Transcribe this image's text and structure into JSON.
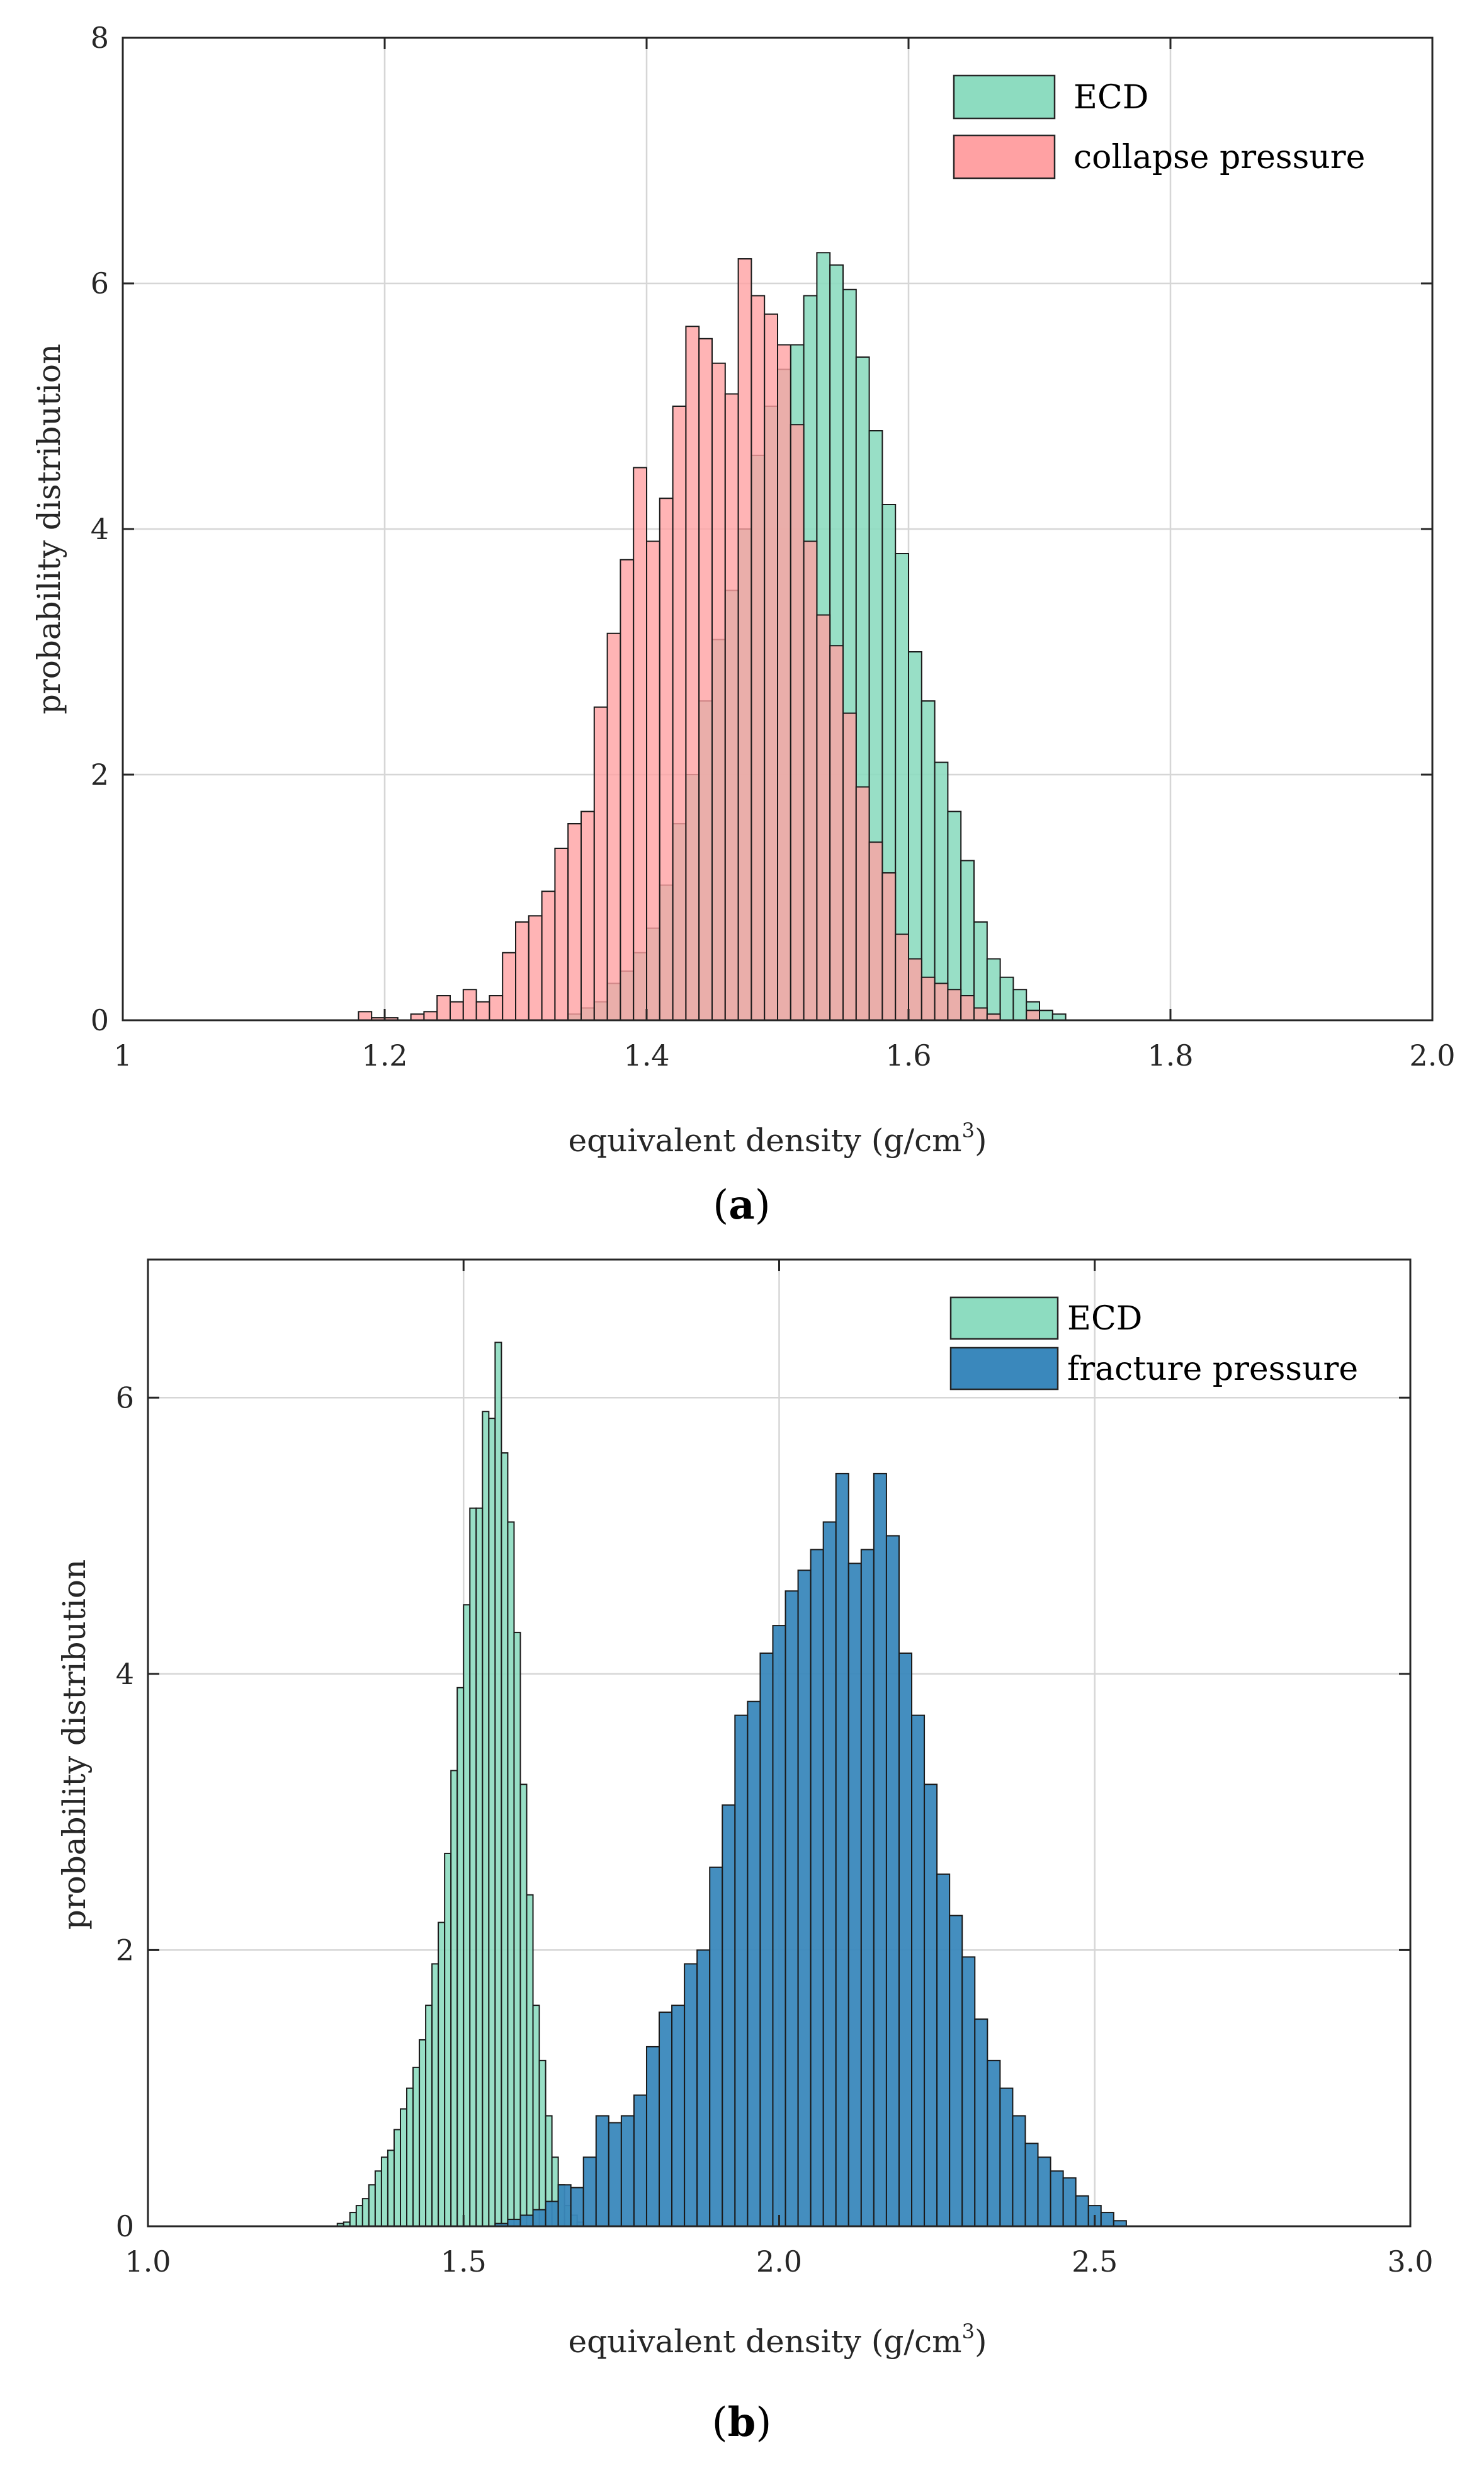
{
  "chart_data": [
    {
      "panel_label": "a",
      "type": "bar",
      "xlabel": "equivalent density (g/cm",
      "xlabel_sup": "3",
      "xlabel_close": ")",
      "ylabel": "probability distribution",
      "xlim": [
        1.0,
        2.0
      ],
      "ylim": [
        0,
        8
      ],
      "xticks": [
        1.0,
        1.2,
        1.4,
        1.6,
        1.8,
        2.0
      ],
      "xtick_labels": [
        "1",
        "1.2",
        "1.4",
        "1.6",
        "1.8",
        "2.0"
      ],
      "yticks": [
        0,
        2,
        4,
        6,
        8
      ],
      "ytick_labels": [
        "0",
        "2",
        "4",
        "6",
        "8"
      ],
      "grid": true,
      "legend_position": "top-right",
      "series": [
        {
          "name": "ECD",
          "color": "#8ddcc0",
          "bin_start": 1.34,
          "bin_width": 0.01,
          "values": [
            0.05,
            0.1,
            0.15,
            0.3,
            0.4,
            0.55,
            0.75,
            1.1,
            1.6,
            2.0,
            2.6,
            3.1,
            3.5,
            4.0,
            4.6,
            5.0,
            5.3,
            5.5,
            5.9,
            6.25,
            6.15,
            5.95,
            5.4,
            4.8,
            4.2,
            3.8,
            3.0,
            2.6,
            2.1,
            1.7,
            1.3,
            0.8,
            0.5,
            0.35,
            0.25,
            0.15,
            0.08,
            0.05
          ]
        },
        {
          "name": "collapse pressure",
          "color": "#ffa1a3",
          "bin_start": 1.18,
          "bin_width": 0.01,
          "values": [
            0.07,
            0.02,
            0.02,
            0.0,
            0.05,
            0.07,
            0.2,
            0.15,
            0.25,
            0.15,
            0.2,
            0.55,
            0.8,
            0.85,
            1.05,
            1.4,
            1.6,
            1.7,
            2.55,
            3.15,
            3.75,
            4.5,
            3.9,
            4.25,
            5.0,
            5.65,
            5.55,
            5.35,
            5.1,
            6.2,
            5.9,
            5.75,
            5.5,
            4.85,
            3.9,
            3.3,
            3.05,
            2.5,
            1.9,
            1.45,
            1.2,
            0.7,
            0.5,
            0.35,
            0.3,
            0.25,
            0.2,
            0.1,
            0.05,
            0.0,
            0.0,
            0.08
          ]
        }
      ]
    },
    {
      "panel_label": "b",
      "type": "bar",
      "xlabel": "equivalent density (g/cm",
      "xlabel_sup": "3",
      "xlabel_close": ")",
      "ylabel": "probability distribution",
      "xlim": [
        1.0,
        3.0
      ],
      "ylim": [
        0,
        7
      ],
      "xticks": [
        1.0,
        1.5,
        2.0,
        2.5,
        3.0
      ],
      "xtick_labels": [
        "1.0",
        "1.5",
        "2.0",
        "2.5",
        "3.0"
      ],
      "yticks": [
        0,
        2,
        4,
        6
      ],
      "ytick_labels": [
        "0",
        "2",
        "4",
        "6"
      ],
      "grid": true,
      "legend_position": "top-right",
      "series": [
        {
          "name": "ECD",
          "color": "#8ddcc0",
          "bin_start": 1.3,
          "bin_width": 0.01,
          "values": [
            0.02,
            0.03,
            0.1,
            0.15,
            0.2,
            0.3,
            0.4,
            0.5,
            0.55,
            0.7,
            0.85,
            1.0,
            1.15,
            1.35,
            1.6,
            1.9,
            2.2,
            2.7,
            3.3,
            3.9,
            4.5,
            5.2,
            5.2,
            5.9,
            5.85,
            6.4,
            5.6,
            5.1,
            4.3,
            3.2,
            2.4,
            1.6,
            1.2,
            0.8,
            0.5,
            0.3,
            0.15,
            0.08,
            0.03
          ]
        },
        {
          "name": "fracture pressure",
          "color": "#3a88bc",
          "bin_start": 1.55,
          "bin_width": 0.02,
          "values": [
            0.02,
            0.05,
            0.08,
            0.12,
            0.18,
            0.3,
            0.28,
            0.5,
            0.8,
            0.75,
            0.8,
            0.95,
            1.3,
            1.55,
            1.6,
            1.9,
            2.0,
            2.6,
            3.05,
            3.7,
            3.8,
            4.15,
            4.35,
            4.6,
            4.75,
            4.9,
            5.1,
            5.45,
            4.8,
            4.9,
            5.45,
            5.0,
            4.15,
            3.7,
            3.2,
            2.55,
            2.25,
            1.95,
            1.5,
            1.2,
            1.0,
            0.8,
            0.6,
            0.5,
            0.4,
            0.35,
            0.22,
            0.15,
            0.1,
            0.04
          ]
        }
      ]
    }
  ]
}
